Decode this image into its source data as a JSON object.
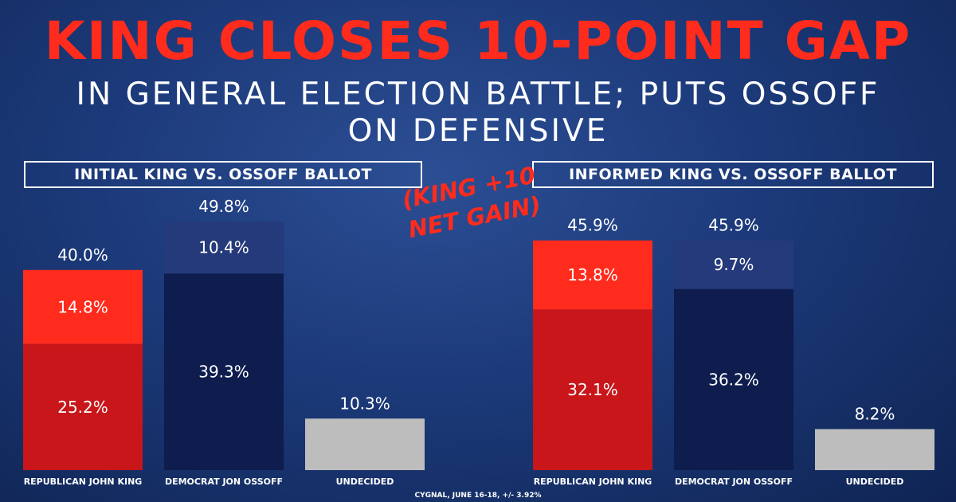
{
  "headline": "KING CLOSES 10-POINT GAP",
  "subheadline_line1": "IN GENERAL ELECTION BATTLE; PUTS OSSOFF",
  "subheadline_line2": "ON DEFENSIVE",
  "annotation_line1": "(KING +10",
  "annotation_line2": "NET GAIN)",
  "source": "CYGNAL, JUNE 16-18, +/- 3.92%",
  "colors": {
    "republican_base": "#c8161a",
    "republican_lean": "#ff2b1c",
    "democrat_base": "#0e1d4e",
    "democrat_lean": "#253a7a",
    "undecided": "#bdbdbd"
  },
  "chart_data": [
    {
      "type": "bar",
      "title": "INITIAL KING VS. OSSOFF BALLOT",
      "categories": [
        "REPUBLICAN JOHN KING",
        "DEMOCRAT JON OSSOFF",
        "UNDECIDED"
      ],
      "totals": [
        40.0,
        49.8,
        10.3
      ],
      "total_labels": [
        "40.0%",
        "49.8%",
        "10.3%"
      ],
      "series": [
        {
          "values": [
            25.2,
            39.3,
            10.3
          ],
          "labels": [
            "25.2%",
            "39.3%",
            ""
          ]
        },
        {
          "values": [
            14.8,
            10.4,
            0
          ],
          "labels": [
            "14.8%",
            "10.4%",
            ""
          ]
        }
      ],
      "ylim": [
        0,
        60
      ]
    },
    {
      "type": "bar",
      "title": "INFORMED KING VS. OSSOFF BALLOT",
      "categories": [
        "REPUBLICAN JOHN KING",
        "DEMOCRAT JON OSSOFF",
        "UNDECIDED"
      ],
      "totals": [
        45.9,
        45.9,
        8.2
      ],
      "total_labels": [
        "45.9%",
        "45.9%",
        "8.2%"
      ],
      "series": [
        {
          "values": [
            32.1,
            36.2,
            8.2
          ],
          "labels": [
            "32.1%",
            "36.2%",
            ""
          ]
        },
        {
          "values": [
            13.8,
            9.7,
            0
          ],
          "labels": [
            "13.8%",
            "9.7%",
            ""
          ]
        }
      ],
      "ylim": [
        0,
        60
      ]
    }
  ]
}
